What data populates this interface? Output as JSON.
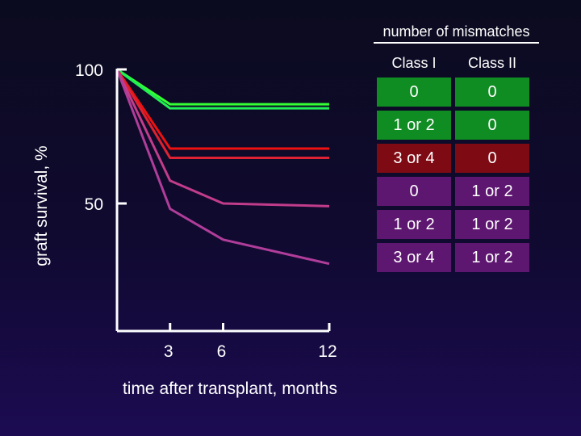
{
  "chart_data": {
    "type": "line",
    "xlabel": "time after transplant, months",
    "ylabel": "graft survival, %",
    "x_ticks": [
      3,
      6,
      12
    ],
    "y_ticks": [
      50,
      100
    ],
    "xlim": [
      0,
      12
    ],
    "ylim": [
      0,
      100
    ],
    "grid": false,
    "series": [
      {
        "color": "#33ff33",
        "x": [
          0,
          3,
          12
        ],
        "y": [
          100,
          87,
          87
        ]
      },
      {
        "color": "#22ee55",
        "x": [
          0,
          3,
          12
        ],
        "y": [
          100,
          85.5,
          85.5
        ]
      },
      {
        "color": "#ee1111",
        "x": [
          0,
          3,
          12
        ],
        "y": [
          100,
          70.5,
          70.5
        ]
      },
      {
        "color": "#dd2233",
        "x": [
          0,
          3,
          12
        ],
        "y": [
          100,
          67,
          67
        ]
      },
      {
        "color": "#c23c8c",
        "x": [
          0,
          3,
          6,
          12
        ],
        "y": [
          100,
          58.5,
          50,
          49
        ]
      },
      {
        "color": "#b03d9a",
        "x": [
          0,
          3,
          6,
          12
        ],
        "y": [
          100,
          48,
          36.5,
          27.5
        ]
      }
    ]
  },
  "legend": {
    "title": "number of mismatches",
    "columns": [
      "Class I",
      "Class II"
    ],
    "rows": [
      {
        "class1": "0",
        "class2": "0",
        "color": "#0f8c22"
      },
      {
        "class1": "1 or 2",
        "class2": "0",
        "color": "#0f8c22"
      },
      {
        "class1": "3 or 4",
        "class2": "0",
        "color": "#7e0b14"
      },
      {
        "class1": "0",
        "class2": "1 or 2",
        "color": "#5e1770"
      },
      {
        "class1": "1 or 2",
        "class2": "1 or 2",
        "color": "#5e1770"
      },
      {
        "class1": "3 or 4",
        "class2": "1 or 2",
        "color": "#5e1770"
      }
    ]
  }
}
